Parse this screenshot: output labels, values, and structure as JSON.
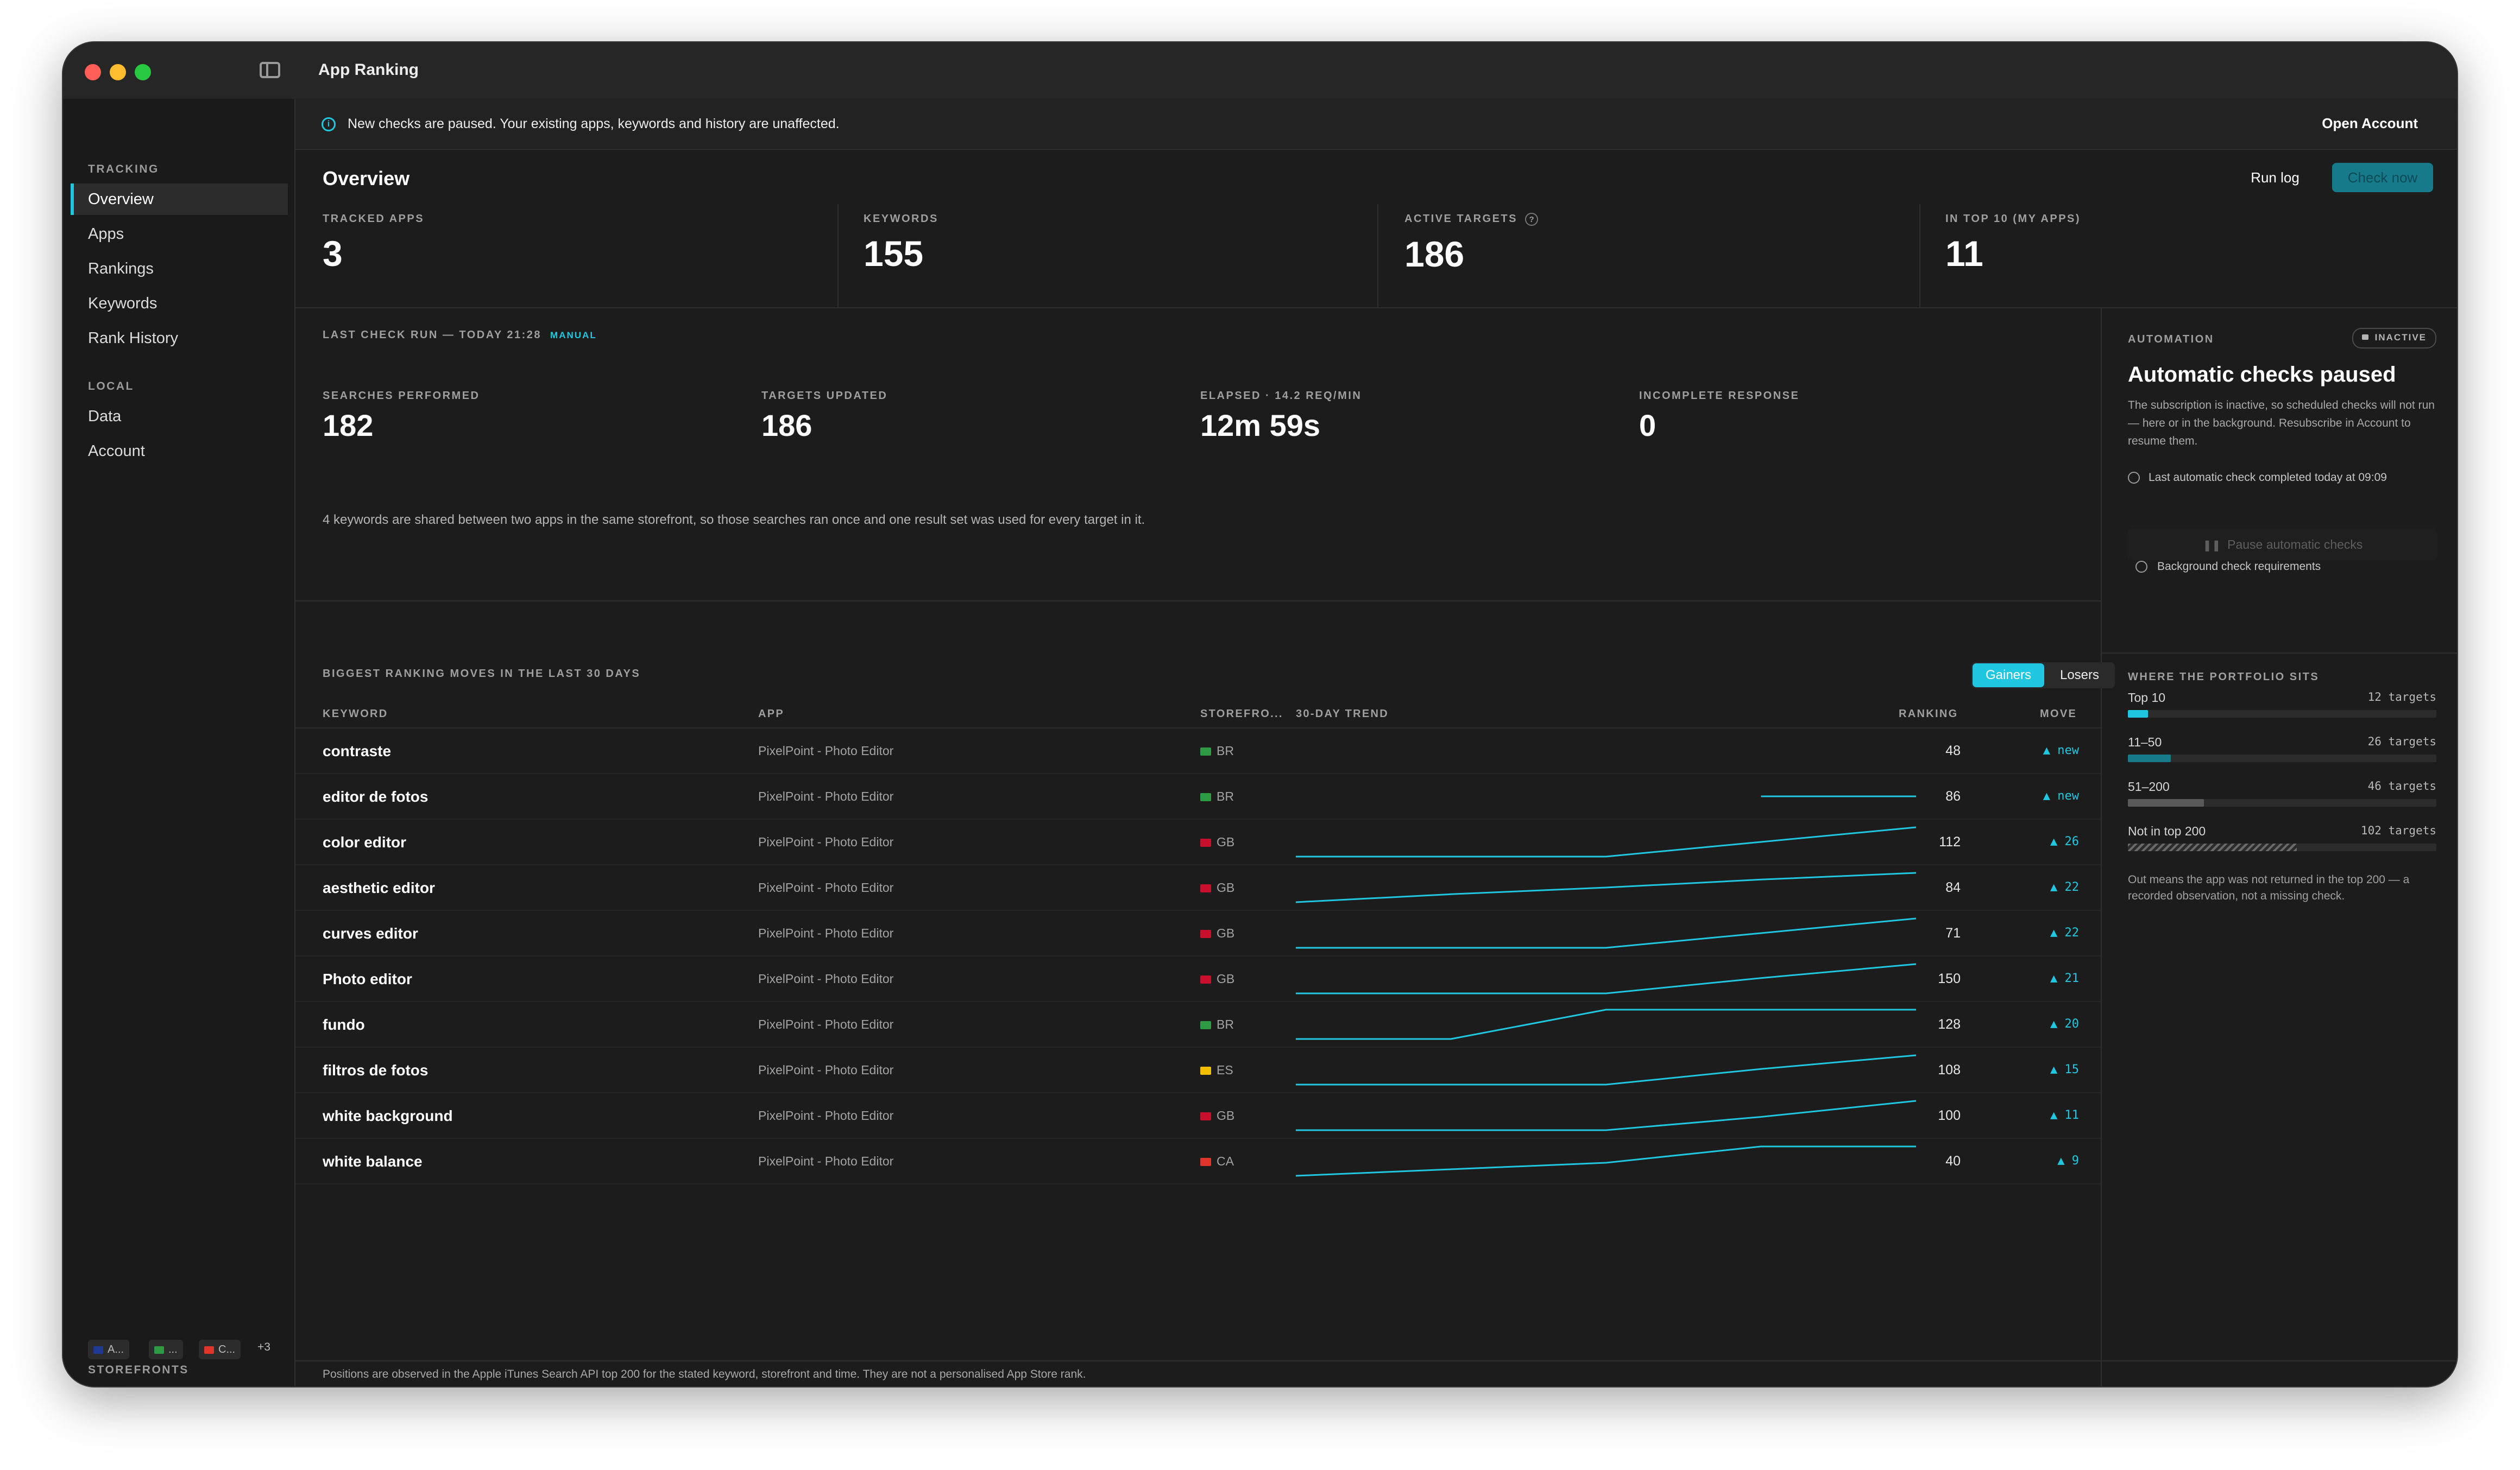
{
  "window": {
    "title": "App Ranking"
  },
  "sidebar": {
    "tracking_heading": "TRACKING",
    "tracking_items": [
      {
        "label": "Overview",
        "active": true
      },
      {
        "label": "Apps"
      },
      {
        "label": "Rankings"
      },
      {
        "label": "Keywords"
      },
      {
        "label": "Rank History"
      }
    ],
    "local_heading": "LOCAL",
    "local_items": [
      {
        "label": "Data"
      },
      {
        "label": "Account"
      }
    ],
    "storefronts_heading": "STOREFRONTS",
    "storefront_chips": [
      {
        "label": "A...",
        "flag": "au"
      },
      {
        "label": "...",
        "flag": "br"
      },
      {
        "label": "C...",
        "flag": "ca"
      }
    ],
    "storefronts_more": "+3"
  },
  "banner": {
    "text": "New checks are paused. Your existing apps, keywords and history are unaffected.",
    "action": "Open Account",
    "icon": "info-icon"
  },
  "header": {
    "title": "Overview",
    "run_log": "Run log",
    "check_now": "Check now"
  },
  "stats": [
    {
      "label": "TRACKED APPS",
      "value": "3"
    },
    {
      "label": "KEYWORDS",
      "value": "155"
    },
    {
      "label": "ACTIVE TARGETS",
      "value": "186",
      "help": "?"
    },
    {
      "label": "IN TOP 10 (MY APPS)",
      "value": "11"
    }
  ],
  "last_run": {
    "label": "LAST CHECK RUN — TODAY 21:28",
    "tag": "MANUAL",
    "stats": [
      {
        "label": "SEARCHES PERFORMED",
        "value": "182"
      },
      {
        "label": "TARGETS UPDATED",
        "value": "186"
      },
      {
        "label": "ELAPSED · 14.2 REQ/MIN",
        "value": "12m 59s"
      },
      {
        "label": "INCOMPLETE RESPONSE",
        "value": "0"
      }
    ],
    "note": "4 keywords are shared between two apps in the same storefront, so those searches ran once and one result set was used for every target in it."
  },
  "automation": {
    "label": "AUTOMATION",
    "badge": "INACTIVE",
    "title": "Automatic checks paused",
    "description": "The subscription is inactive, so scheduled checks will not run — here or in the background. Resubscribe in Account to resume them.",
    "last_check": "Last automatic check completed today at 09:09",
    "pause_button": "Pause automatic checks",
    "requirements_link": "Background check requirements"
  },
  "portfolio": {
    "label": "WHERE THE PORTFOLIO SITS",
    "total": 186,
    "rows": [
      {
        "label": "Top 10",
        "count_label": "12 targets",
        "count": 12,
        "color": "#1fc8e0"
      },
      {
        "label": "11–50",
        "count_label": "26 targets",
        "count": 26,
        "color": "#167a8a"
      },
      {
        "label": "51–200",
        "count_label": "46 targets",
        "count": 46,
        "color": "#5a5a5a"
      },
      {
        "label": "Not in top 200",
        "count_label": "102 targets",
        "count": 102,
        "color": "hatched"
      }
    ],
    "note": "Out means the app was not returned in the top 200 — a recorded observation, not a missing check."
  },
  "moves": {
    "label": "BIGGEST RANKING MOVES IN THE LAST 30 DAYS",
    "segments": {
      "gainers": "Gainers",
      "losers": "Losers",
      "selected": "gainers"
    },
    "columns": {
      "keyword": "KEYWORD",
      "app": "APP",
      "storefront": "STOREFRO...",
      "trend": "30-DAY TREND",
      "ranking": "RANKING",
      "move": "MOVE"
    },
    "trend_color": "#1fc8e0",
    "rows": [
      {
        "keyword": "contraste",
        "app": "PixelPoint - Photo Editor",
        "flag": "br",
        "storefront": "BR",
        "ranking": "48",
        "move": "▲ new",
        "trend": []
      },
      {
        "keyword": "editor de fotos",
        "app": "PixelPoint - Photo Editor",
        "flag": "br",
        "storefront": "BR",
        "ranking": "86",
        "move": "▲ new",
        "trend": [
          null,
          null,
          null,
          86,
          86
        ]
      },
      {
        "keyword": "color editor",
        "app": "PixelPoint - Photo Editor",
        "flag": "gb",
        "storefront": "GB",
        "ranking": "112",
        "move": "▲ 26",
        "trend": [
          138,
          138,
          138,
          125,
          112
        ]
      },
      {
        "keyword": "aesthetic editor",
        "app": "PixelPoint - Photo Editor",
        "flag": "gb",
        "storefront": "GB",
        "ranking": "84",
        "move": "▲ 22",
        "trend": [
          106,
          100,
          95,
          89,
          84
        ]
      },
      {
        "keyword": "curves editor",
        "app": "PixelPoint - Photo Editor",
        "flag": "gb",
        "storefront": "GB",
        "ranking": "71",
        "move": "▲ 22",
        "trend": [
          93,
          93,
          93,
          82,
          71
        ]
      },
      {
        "keyword": "Photo editor",
        "app": "PixelPoint - Photo Editor",
        "flag": "gb",
        "storefront": "GB",
        "ranking": "150",
        "move": "▲ 21",
        "trend": [
          171,
          171,
          171,
          160,
          150
        ]
      },
      {
        "keyword": "fundo",
        "app": "PixelPoint - Photo Editor",
        "flag": "br",
        "storefront": "BR",
        "ranking": "128",
        "move": "▲ 20",
        "trend": [
          148,
          148,
          128,
          128,
          128
        ]
      },
      {
        "keyword": "filtros de fotos",
        "app": "PixelPoint - Photo Editor",
        "flag": "es",
        "storefront": "ES",
        "ranking": "108",
        "move": "▲ 15",
        "trend": [
          123,
          123,
          123,
          115,
          108
        ]
      },
      {
        "keyword": "white background",
        "app": "PixelPoint - Photo Editor",
        "flag": "gb",
        "storefront": "GB",
        "ranking": "100",
        "move": "▲ 11",
        "trend": [
          111,
          111,
          111,
          106,
          100
        ]
      },
      {
        "keyword": "white balance",
        "app": "PixelPoint - Photo Editor",
        "flag": "ca",
        "storefront": "CA",
        "ranking": "40",
        "move": "▲ 9",
        "trend": [
          49,
          47,
          45,
          40,
          40
        ]
      }
    ]
  },
  "footer": {
    "note": "Positions are observed in the Apple iTunes Search API top 200 for the stated keyword, storefront and time. They are not a personalised App Store rank."
  }
}
